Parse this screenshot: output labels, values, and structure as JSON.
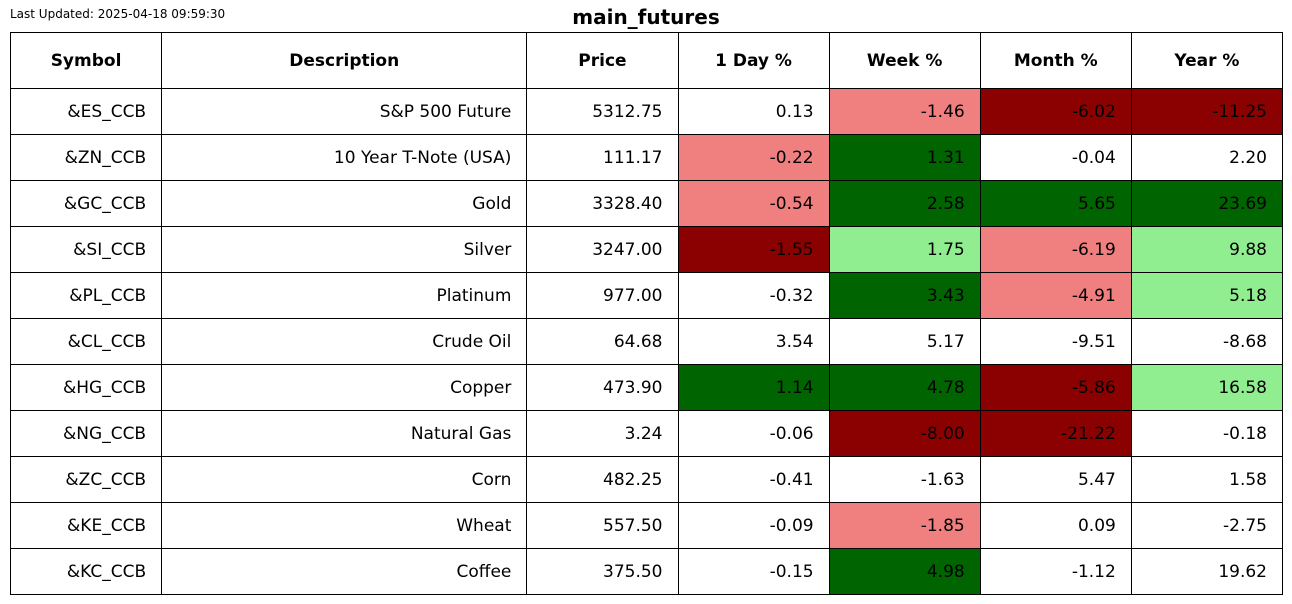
{
  "last_updated": "Last Updated: 2025-04-18 09:59:30",
  "chart_data": {
    "type": "table",
    "title": "main_futures",
    "columns": [
      "Symbol",
      "Description",
      "Price",
      "1 Day %",
      "Week %",
      "Month %",
      "Year %"
    ],
    "rows": [
      {
        "symbol": "&ES_CCB",
        "description": "S&P 500 Future",
        "price": "5312.75",
        "day": "0.13",
        "week": "-1.46",
        "month": "-6.02",
        "year": "-11.25"
      },
      {
        "symbol": "&ZN_CCB",
        "description": "10 Year T-Note (USA)",
        "price": "111.17",
        "day": "-0.22",
        "week": "1.31",
        "month": "-0.04",
        "year": "2.20"
      },
      {
        "symbol": "&GC_CCB",
        "description": "Gold",
        "price": "3328.40",
        "day": "-0.54",
        "week": "2.58",
        "month": "5.65",
        "year": "23.69"
      },
      {
        "symbol": "&SI_CCB",
        "description": "Silver",
        "price": "3247.00",
        "day": "-1.55",
        "week": "1.75",
        "month": "-6.19",
        "year": "9.88"
      },
      {
        "symbol": "&PL_CCB",
        "description": "Platinum",
        "price": "977.00",
        "day": "-0.32",
        "week": "3.43",
        "month": "-4.91",
        "year": "5.18"
      },
      {
        "symbol": "&CL_CCB",
        "description": "Crude Oil",
        "price": "64.68",
        "day": "3.54",
        "week": "5.17",
        "month": "-9.51",
        "year": "-8.68"
      },
      {
        "symbol": "&HG_CCB",
        "description": "Copper",
        "price": "473.90",
        "day": "1.14",
        "week": "4.78",
        "month": "-5.86",
        "year": "16.58"
      },
      {
        "symbol": "&NG_CCB",
        "description": "Natural Gas",
        "price": "3.24",
        "day": "-0.06",
        "week": "-8.00",
        "month": "-21.22",
        "year": "-0.18"
      },
      {
        "symbol": "&ZC_CCB",
        "description": "Corn",
        "price": "482.25",
        "day": "-0.41",
        "week": "-1.63",
        "month": "5.47",
        "year": "1.58"
      },
      {
        "symbol": "&KE_CCB",
        "description": "Wheat",
        "price": "557.50",
        "day": "-0.09",
        "week": "-1.85",
        "month": "0.09",
        "year": "-2.75"
      },
      {
        "symbol": "&KC_CCB",
        "description": "Coffee",
        "price": "375.50",
        "day": "-0.15",
        "week": "4.98",
        "month": "-1.12",
        "year": "19.62"
      }
    ],
    "cell_colors": [
      {
        "day": "#ffffff",
        "week": "#f08080",
        "month": "#8b0000",
        "year": "#8b0000"
      },
      {
        "day": "#f08080",
        "week": "#006400",
        "month": "#ffffff",
        "year": "#ffffff"
      },
      {
        "day": "#f08080",
        "week": "#006400",
        "month": "#006400",
        "year": "#006400"
      },
      {
        "day": "#8b0000",
        "week": "#90ee90",
        "month": "#f08080",
        "year": "#90ee90"
      },
      {
        "day": "#ffffff",
        "week": "#006400",
        "month": "#f08080",
        "year": "#90ee90"
      },
      {
        "day": "#ffffff",
        "week": "#ffffff",
        "month": "#ffffff",
        "year": "#ffffff"
      },
      {
        "day": "#006400",
        "week": "#006400",
        "month": "#8b0000",
        "year": "#90ee90"
      },
      {
        "day": "#ffffff",
        "week": "#8b0000",
        "month": "#8b0000",
        "year": "#ffffff"
      },
      {
        "day": "#ffffff",
        "week": "#ffffff",
        "month": "#ffffff",
        "year": "#ffffff"
      },
      {
        "day": "#ffffff",
        "week": "#f08080",
        "month": "#ffffff",
        "year": "#ffffff"
      },
      {
        "day": "#ffffff",
        "week": "#006400",
        "month": "#ffffff",
        "year": "#ffffff"
      }
    ]
  }
}
